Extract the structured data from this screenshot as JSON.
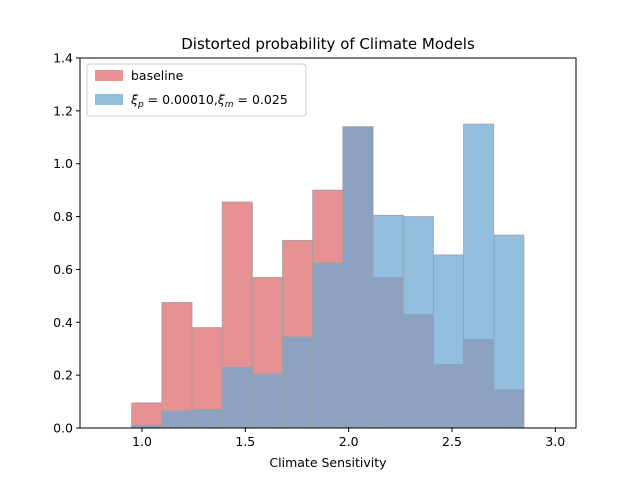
{
  "chart_data": {
    "type": "bar",
    "title": "Distorted probability of Climate Models",
    "xlabel": "Climate Sensitivity",
    "ylabel": "",
    "xlim": [
      0.7,
      3.1
    ],
    "ylim": [
      0,
      1.4
    ],
    "xticks": [
      "1.0",
      "1.5",
      "2.0",
      "2.5",
      "3.0"
    ],
    "yticks": [
      "0.0",
      "0.2",
      "0.4",
      "0.6",
      "0.8",
      "1.0",
      "1.2",
      "1.4"
    ],
    "bin_edges": [
      0.95,
      1.096,
      1.242,
      1.388,
      1.534,
      1.68,
      1.826,
      1.972,
      2.118,
      2.264,
      2.41,
      2.556,
      2.702,
      2.848
    ],
    "legend_position": "top-left",
    "grid": false,
    "series": [
      {
        "name": "baseline",
        "color": "#e06c6f",
        "values": [
          0.095,
          0.475,
          0.38,
          0.855,
          0.57,
          0.71,
          0.9,
          1.14,
          0.57,
          0.43,
          0.24,
          0.335,
          0.145
        ]
      },
      {
        "name": "ξp = 0.00010,ξm = 0.025",
        "color": "#6fa8d3",
        "values": [
          0.01,
          0.065,
          0.07,
          0.23,
          0.205,
          0.345,
          0.625,
          1.14,
          0.805,
          0.8,
          0.655,
          1.15,
          0.73
        ]
      }
    ]
  }
}
